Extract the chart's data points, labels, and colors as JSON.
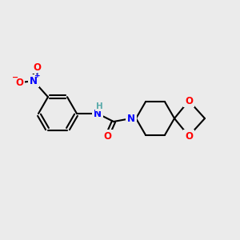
{
  "bg_color": "#ebebeb",
  "bond_color": "#000000",
  "bond_width": 1.5,
  "atom_colors": {
    "N": "#0000ff",
    "O": "#ff0000",
    "H": "#5aabab",
    "C": "#000000"
  },
  "font_size": 8.5,
  "fig_size": [
    3.0,
    3.0
  ],
  "dpi": 100
}
